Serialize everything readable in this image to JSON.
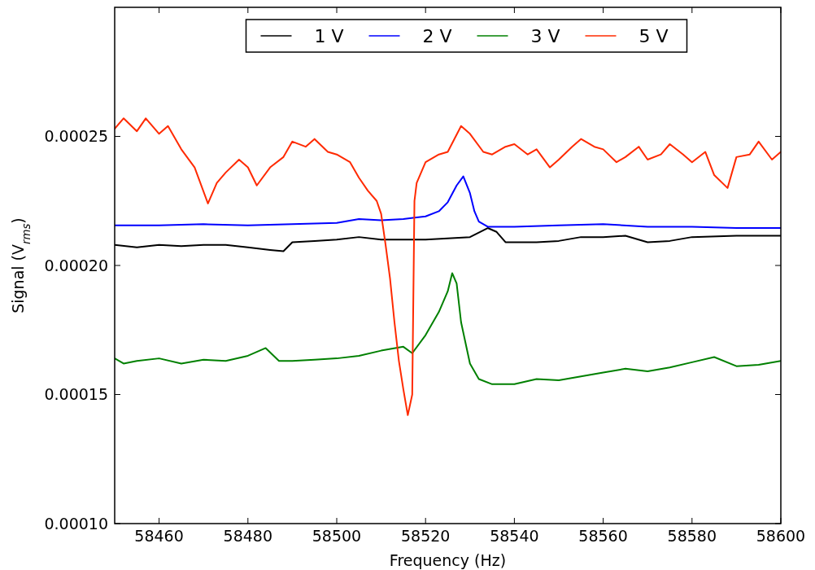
{
  "chart_data": {
    "type": "line",
    "xlabel": "Frequency (Hz)",
    "ylabel": "Signal (V$_{rms}$)",
    "xlim": [
      58450,
      58600
    ],
    "ylim": [
      0.0001,
      0.0003
    ],
    "xticks": [
      58460,
      58480,
      58500,
      58520,
      58540,
      58560,
      58580,
      58600
    ],
    "yticks": [
      {
        "value": 0.0001,
        "label": "0.00010"
      },
      {
        "value": 0.00015,
        "label": "0.00015"
      },
      {
        "value": 0.0002,
        "label": "0.00020"
      },
      {
        "value": 0.00025,
        "label": "0.00025"
      }
    ],
    "grid": false,
    "legend": "top",
    "marker": "none",
    "line_style": "solid",
    "series": [
      {
        "name": "1 V",
        "color": "#000000",
        "x": [
          58450,
          58455,
          58460,
          58465,
          58470,
          58475,
          58480,
          58485,
          58488,
          58490,
          58495,
          58500,
          58505,
          58510,
          58515,
          58520,
          58525,
          58530,
          58534,
          58536,
          58538,
          58545,
          58550,
          58555,
          58560,
          58565,
          58570,
          58575,
          58580,
          58590,
          58600
        ],
        "values": [
          0.000208,
          0.000207,
          0.000208,
          0.0002075,
          0.000208,
          0.000208,
          0.000207,
          0.000206,
          0.0002055,
          0.000209,
          0.0002095,
          0.00021,
          0.000211,
          0.00021,
          0.00021,
          0.00021,
          0.0002105,
          0.000211,
          0.0002145,
          0.000213,
          0.000209,
          0.000209,
          0.0002095,
          0.000211,
          0.000211,
          0.0002115,
          0.000209,
          0.0002095,
          0.000211,
          0.0002115,
          0.0002115
        ]
      },
      {
        "name": "2 V",
        "color": "#0000ff",
        "x": [
          58450,
          58460,
          58470,
          58480,
          58490,
          58500,
          58505,
          58510,
          58515,
          58520,
          58523,
          58525,
          58527,
          58528.5,
          58530,
          58531,
          58532,
          58534,
          58540,
          58550,
          58560,
          58570,
          58580,
          58590,
          58600
        ],
        "values": [
          0.0002155,
          0.0002155,
          0.000216,
          0.0002155,
          0.000216,
          0.0002165,
          0.000218,
          0.0002175,
          0.000218,
          0.000219,
          0.000221,
          0.0002245,
          0.000231,
          0.0002345,
          0.000228,
          0.000221,
          0.000217,
          0.000215,
          0.000215,
          0.0002155,
          0.000216,
          0.000215,
          0.000215,
          0.0002145,
          0.0002145
        ]
      },
      {
        "name": "3 V",
        "color": "#008000",
        "x": [
          58450,
          58452,
          58455,
          58460,
          58465,
          58470,
          58475,
          58480,
          58484,
          58487,
          58490,
          58495,
          58500,
          58505,
          58510,
          58515,
          58517,
          58520,
          58523,
          58525,
          58526,
          58527,
          58528,
          58530,
          58532,
          58535,
          58540,
          58545,
          58550,
          58555,
          58560,
          58565,
          58570,
          58575,
          58580,
          58585,
          58590,
          58595,
          58600
        ],
        "values": [
          0.000164,
          0.000162,
          0.000163,
          0.000164,
          0.000162,
          0.0001635,
          0.000163,
          0.000165,
          0.000168,
          0.000163,
          0.000163,
          0.0001635,
          0.000164,
          0.000165,
          0.000167,
          0.0001685,
          0.000166,
          0.000173,
          0.000182,
          0.00019,
          0.000197,
          0.000193,
          0.000178,
          0.000162,
          0.000156,
          0.000154,
          0.000154,
          0.000156,
          0.0001555,
          0.000157,
          0.0001585,
          0.00016,
          0.000159,
          0.0001605,
          0.0001625,
          0.0001645,
          0.000161,
          0.0001615,
          0.000163
        ]
      },
      {
        "name": "5 V",
        "color": "#ff2a00",
        "x": [
          58450,
          58452,
          58455,
          58457,
          58460,
          58462,
          58465,
          58468,
          58471,
          58473,
          58475,
          58478,
          58480,
          58482,
          58485,
          58488,
          58490,
          58493,
          58495,
          58498,
          58500,
          58503,
          58505,
          58507,
          58509,
          58510,
          58511,
          58512,
          58513,
          58514,
          58515,
          58516,
          58517,
          58517.5,
          58518,
          58520,
          58523,
          58525,
          58528,
          58530,
          58533,
          58535,
          58538,
          58540,
          58543,
          58545,
          58548,
          58550,
          58553,
          58555,
          58558,
          58560,
          58563,
          58565,
          58568,
          58570,
          58573,
          58575,
          58578,
          58580,
          58583,
          58585,
          58588,
          58590,
          58593,
          58595,
          58598,
          58600
        ],
        "values": [
          0.000253,
          0.000257,
          0.000252,
          0.000257,
          0.000251,
          0.000254,
          0.000245,
          0.000238,
          0.000224,
          0.000232,
          0.000236,
          0.000241,
          0.000238,
          0.000231,
          0.000238,
          0.000242,
          0.000248,
          0.000246,
          0.000249,
          0.000244,
          0.000243,
          0.00024,
          0.000234,
          0.000229,
          0.000225,
          0.00022,
          0.000208,
          0.000195,
          0.000178,
          0.000163,
          0.000152,
          0.000142,
          0.00015,
          0.000225,
          0.000232,
          0.00024,
          0.000243,
          0.000244,
          0.000254,
          0.000251,
          0.000244,
          0.000243,
          0.000246,
          0.000247,
          0.000243,
          0.000245,
          0.000238,
          0.000241,
          0.000246,
          0.000249,
          0.000246,
          0.000245,
          0.00024,
          0.000242,
          0.000246,
          0.000241,
          0.000243,
          0.000247,
          0.000243,
          0.00024,
          0.000244,
          0.000235,
          0.00023,
          0.000242,
          0.000243,
          0.000248,
          0.000241,
          0.000244
        ]
      }
    ]
  }
}
